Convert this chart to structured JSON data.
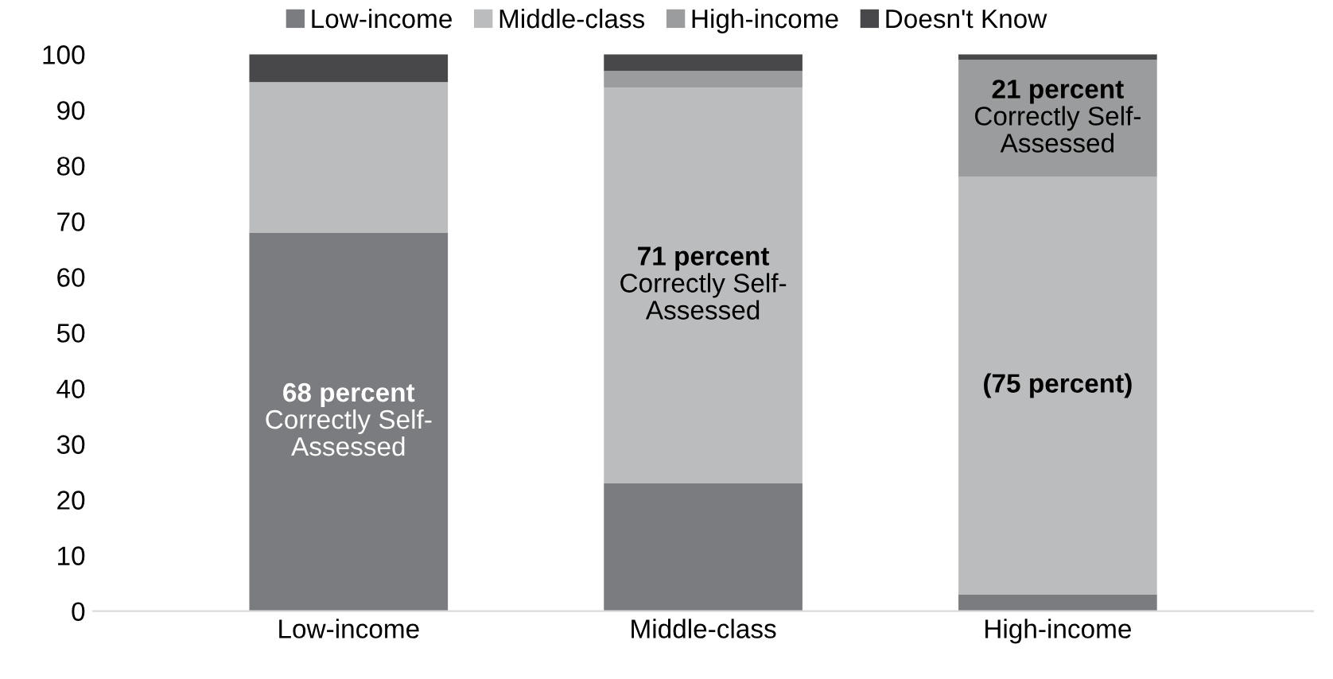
{
  "chart_data": {
    "type": "bar",
    "stacked": true,
    "categories": [
      "Low-income",
      "Middle-class",
      "High-income"
    ],
    "series": [
      {
        "name": "Low-income",
        "color": "#7b7c80",
        "values": [
          68,
          23,
          3
        ],
        "value_labels": [
          "68 percent\nCorrectly Self-\nAssessed",
          null,
          null
        ]
      },
      {
        "name": "Middle-class",
        "color": "#bbbcbe",
        "values": [
          27,
          71,
          75
        ],
        "value_labels": [
          null,
          "71 percent\nCorrectly Self-\nAssessed",
          "(75 percent)"
        ]
      },
      {
        "name": "High-income",
        "color": "#9a9c9d",
        "values": [
          0,
          3,
          21
        ],
        "value_labels": [
          null,
          null,
          "21 percent\nCorrectly Self-\nAssessed"
        ]
      },
      {
        "name": "Doesn't Know",
        "color": "#48484b",
        "values": [
          5,
          3,
          1
        ]
      }
    ],
    "ylim": [
      0,
      100
    ],
    "yticks": [
      0,
      10,
      20,
      30,
      40,
      50,
      60,
      70,
      80,
      90,
      100
    ],
    "grid": false,
    "legend": "top"
  }
}
